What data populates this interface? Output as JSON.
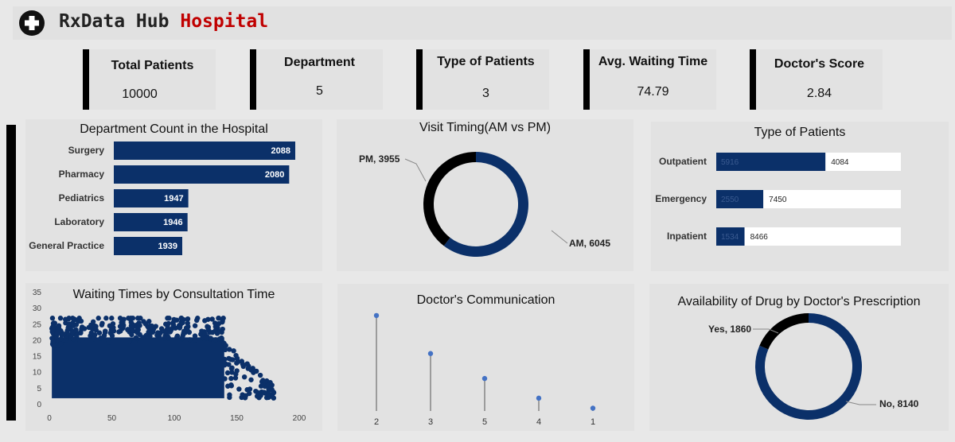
{
  "header": {
    "brand": "RxData Hub",
    "accent": "Hospital",
    "logo_icon": "hospital-cross-icon"
  },
  "kpis": [
    {
      "label": "Total Patients",
      "value": "10000"
    },
    {
      "label": "Department",
      "value": "5"
    },
    {
      "label": "Type of Patients",
      "value": "3"
    },
    {
      "label": "Avg. Waiting Time",
      "value": "74.79"
    },
    {
      "label": "Doctor's Score",
      "value": "2.84"
    }
  ],
  "colors": {
    "navy": "#0b3069",
    "black": "#000000",
    "dot": "#4472c4"
  },
  "chart_data": [
    {
      "id": "department",
      "type": "bar",
      "orientation": "horizontal",
      "title": "Department Count in the Hospital",
      "categories": [
        "Surgery",
        "Pharmacy",
        "Pediatrics",
        "Laboratory",
        "General Practice"
      ],
      "values": [
        2088,
        2080,
        1947,
        1946,
        1939
      ]
    },
    {
      "id": "visit_timing",
      "type": "pie",
      "donut": true,
      "title": "Visit Timing(AM vs PM)",
      "labels": [
        "AM",
        "PM"
      ],
      "values": [
        6045,
        3955
      ],
      "data_labels": [
        "AM, 6045",
        "PM, 3955"
      ]
    },
    {
      "id": "patient_type",
      "type": "bar",
      "orientation": "horizontal",
      "stacked": true,
      "title": "Type  of Patients",
      "categories": [
        "Outpatient",
        "Emergency",
        "Inpatient"
      ],
      "series": [
        {
          "values": [
            5916,
            2550,
            1534
          ]
        },
        {
          "values": [
            4084,
            7450,
            8466
          ]
        }
      ]
    },
    {
      "id": "waiting_scatter",
      "type": "scatter",
      "title": "Waiting Times by Consultation Time",
      "xlim": [
        0,
        200
      ],
      "ylim": [
        0,
        35
      ],
      "x_ticks": [
        "0",
        "50",
        "100",
        "150",
        "200"
      ],
      "y_ticks": [
        "0",
        "5",
        "10",
        "15",
        "20",
        "25",
        "30",
        "35"
      ],
      "x_core": [
        2,
        140
      ],
      "y_core": [
        2,
        25
      ]
    },
    {
      "id": "doctor_comm",
      "type": "scatter",
      "style": "lollipop",
      "title": "Doctor's Communication",
      "categories": [
        "2",
        "3",
        "5",
        "4",
        "1"
      ],
      "values": [
        3120,
        2250,
        1680,
        1230,
        1000
      ],
      "ylim": [
        900,
        3300
      ]
    },
    {
      "id": "drug_availability",
      "type": "pie",
      "donut": true,
      "title": "Availability of Drug by Doctor's Prescription",
      "labels": [
        "No",
        "Yes"
      ],
      "values": [
        8140,
        1860
      ],
      "data_labels": [
        "No, 8140",
        "Yes, 1860"
      ]
    }
  ]
}
